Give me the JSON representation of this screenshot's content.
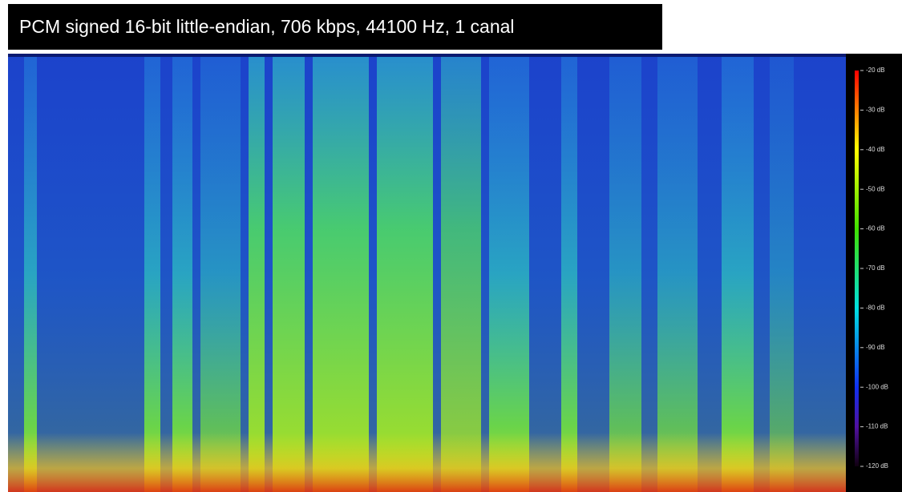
{
  "header": {
    "title": "PCM signed 16-bit little-endian, 706 kbps, 44100 Hz, 1 canal"
  },
  "colorbar": {
    "labels": [
      "-20 dB",
      "-30 dB",
      "-40 dB",
      "-50 dB",
      "-60 dB",
      "-70 dB",
      "-80 dB",
      "-90 dB",
      "-100 dB",
      "-110 dB",
      "-120 dB"
    ]
  }
}
